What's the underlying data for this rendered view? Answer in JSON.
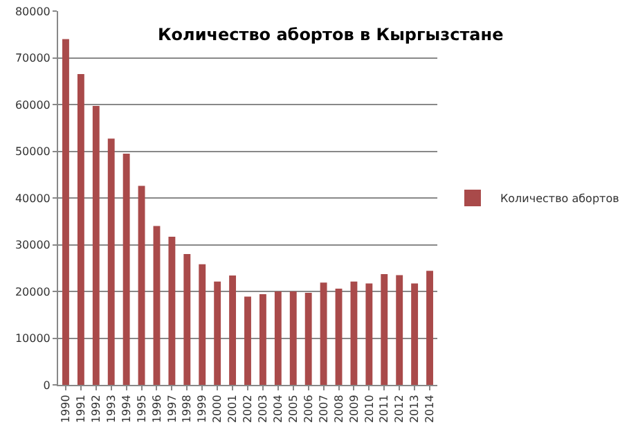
{
  "chart_data": {
    "type": "bar",
    "title": "Количество абортов в Кыргызстане",
    "categories": [
      "1990",
      "1991",
      "1992",
      "1993",
      "1994",
      "1995",
      "1996",
      "1997",
      "1998",
      "1999",
      "2000",
      "2001",
      "2002",
      "2003",
      "2004",
      "2005",
      "2006",
      "2007",
      "2008",
      "2009",
      "2010",
      "2011",
      "2012",
      "2013",
      "2014"
    ],
    "series": [
      {
        "name": "Количество абортов",
        "color": "#a94a4a",
        "values": [
          74000,
          66500,
          59700,
          52700,
          49500,
          42600,
          34000,
          31700,
          28000,
          25800,
          22100,
          23400,
          18900,
          19400,
          20000,
          20000,
          19700,
          21900,
          20600,
          22100,
          21700,
          23700,
          23500,
          21700,
          24400
        ]
      }
    ],
    "ylim": [
      0,
      80000
    ],
    "yticks": [
      0,
      10000,
      20000,
      30000,
      40000,
      50000,
      60000,
      70000,
      80000
    ],
    "grid": "y",
    "legend": "right"
  }
}
